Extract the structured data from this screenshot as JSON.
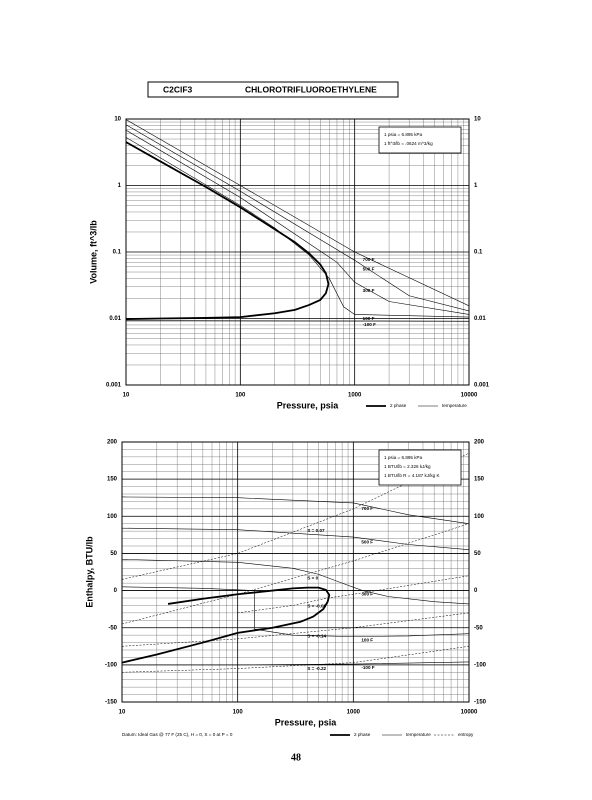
{
  "header": {
    "formula": "C2ClF3",
    "name": "CHLOROTRIFLUOROETHYLENE"
  },
  "page_number": "48",
  "chart_data": [
    {
      "type": "line",
      "xlabel": "Pressure,  psia",
      "ylabel": "Volume, ft^3/lb",
      "xlog": true,
      "ylog": true,
      "grid": true,
      "minor_grid": true,
      "xlim": [
        10,
        10000
      ],
      "xticks": [
        10,
        100,
        1000,
        10000
      ],
      "ylim": [
        0.001,
        10
      ],
      "yticks": [
        0.001,
        0.01,
        0.1,
        1,
        10
      ],
      "notes": [
        "1 psia = 6.895 kPa",
        "1 ft^3/lb = .0624 m^3/kg"
      ],
      "legend": [
        {
          "name": "2 phase",
          "style": "two-phase"
        },
        {
          "name": "temperature",
          "style": "temperature"
        }
      ],
      "series": [
        {
          "style": "two-phase",
          "color": "#000",
          "x": [
            10,
            20,
            50,
            100,
            200,
            300,
            400,
            500,
            560,
            590,
            560,
            500,
            400,
            300,
            200,
            100,
            50,
            20,
            10
          ],
          "values": [
            4.5,
            2.3,
            0.95,
            0.47,
            0.22,
            0.14,
            0.095,
            0.065,
            0.048,
            0.033,
            0.024,
            0.019,
            0.016,
            0.0135,
            0.012,
            0.0105,
            0.0102,
            0.01,
            0.0098
          ]
        },
        {
          "name": "700 F",
          "style": "temperature",
          "color": "#000",
          "x": [
            10,
            100,
            1000,
            10000
          ],
          "values": [
            9.8,
            1.0,
            0.1,
            0.0155
          ]
        },
        {
          "name": "500 F",
          "style": "temperature",
          "color": "#000",
          "x": [
            10,
            100,
            1000,
            3000,
            10000
          ],
          "values": [
            8.2,
            0.82,
            0.075,
            0.022,
            0.013
          ]
        },
        {
          "name": "300 F",
          "style": "temperature",
          "color": "#000",
          "x": [
            10,
            100,
            700,
            1000,
            2000,
            10000
          ],
          "values": [
            6.8,
            0.66,
            0.07,
            0.035,
            0.018,
            0.0115
          ]
        },
        {
          "name": "100 F",
          "style": "temperature",
          "color": "#000",
          "x": [
            10,
            100,
            200,
            400,
            600,
            800,
            1000,
            10000
          ],
          "values": [
            5.3,
            0.5,
            0.23,
            0.09,
            0.04,
            0.015,
            0.0115,
            0.0105
          ]
        },
        {
          "name": "-100 F",
          "style": "temperature",
          "color": "#000",
          "x": [
            10,
            1000,
            10000
          ],
          "values": [
            0.0093,
            0.0092,
            0.0091
          ]
        }
      ]
    },
    {
      "type": "line",
      "xlabel": "Pressure,  psia",
      "ylabel": "Enthalpy, BTU/lb",
      "xlog": true,
      "ylog": false,
      "grid": true,
      "minor_grid": true,
      "xlim": [
        10,
        10000
      ],
      "xticks": [
        10,
        100,
        1000,
        10000
      ],
      "ylim": [
        -150,
        200
      ],
      "yticks": [
        -150,
        -100,
        -50,
        0,
        50,
        100,
        150,
        200
      ],
      "notes": [
        "1 psia = 6.895 kPa",
        "1 BTU/lb = 2.326 kJ/kg",
        "1 BTU/lb R = 4.187 kJ/kg K"
      ],
      "footnote": "Datum: Ideal Gas @ 77 F (25 C), H = 0, S = 0 at P = 0",
      "legend": [
        {
          "name": "2 phase",
          "style": "two-phase"
        },
        {
          "name": "temperature",
          "style": "temperature"
        },
        {
          "name": "entropy",
          "style": "entropy"
        }
      ],
      "series": [
        {
          "style": "two-phase",
          "color": "#000",
          "x": [
            25,
            50,
            100,
            200,
            300,
            400,
            500,
            580,
            620,
            600,
            550,
            450,
            350,
            200,
            100,
            50,
            20,
            10
          ],
          "values": [
            -18,
            -11,
            -5,
            0,
            3,
            4,
            4,
            1,
            -6,
            -15,
            -25,
            -35,
            -42,
            -50,
            -57,
            -70,
            -86,
            -97
          ]
        },
        {
          "name": "700 F",
          "style": "temperature",
          "color": "#000",
          "x": [
            10,
            100,
            1000,
            3000,
            10000
          ],
          "values": [
            126,
            125,
            118,
            102,
            90
          ]
        },
        {
          "name": "500 F",
          "style": "temperature",
          "color": "#000",
          "x": [
            10,
            100,
            1000,
            3000,
            10000
          ],
          "values": [
            84,
            82,
            72,
            62,
            55
          ]
        },
        {
          "name": "300 F",
          "style": "temperature",
          "color": "#000",
          "x": [
            10,
            100,
            300,
            500,
            800,
            1200,
            2000,
            5000,
            10000
          ],
          "values": [
            42,
            38,
            30,
            22,
            10,
            0,
            -8,
            -15,
            -18
          ]
        },
        {
          "name": "100 F",
          "style": "temperature",
          "color": "#000",
          "x": [
            10,
            50,
            140,
            140,
            300,
            1000,
            3000,
            10000
          ],
          "values": [
            5,
            3,
            0,
            -52,
            -60,
            -62,
            -61,
            -58
          ]
        },
        {
          "name": "-100 F",
          "style": "temperature",
          "color": "#000",
          "x": [
            10,
            100,
            1000,
            10000
          ],
          "values": [
            -100,
            -100,
            -99,
            -96
          ]
        },
        {
          "name": "S = 0.07",
          "style": "entropy",
          "color": "#000",
          "x": [
            10,
            100,
            1000,
            10000
          ],
          "values": [
            15,
            50,
            110,
            185
          ]
        },
        {
          "name": "S = 0",
          "style": "entropy",
          "color": "#000",
          "x": [
            10,
            100,
            1000,
            10000
          ],
          "values": [
            -45,
            -5,
            40,
            90
          ]
        },
        {
          "name": "S = -0.08",
          "style": "entropy",
          "color": "#000",
          "x": [
            100,
            300,
            600,
            1000,
            10000
          ],
          "values": [
            -30,
            -20,
            -10,
            -5,
            20
          ]
        },
        {
          "name": "S = -0.14",
          "style": "entropy",
          "color": "#000",
          "x": [
            10,
            100,
            1000,
            10000
          ],
          "values": [
            -75,
            -65,
            -50,
            -30
          ]
        },
        {
          "name": "S = -0.22",
          "style": "entropy",
          "color": "#000",
          "x": [
            10,
            100,
            1000,
            10000
          ],
          "values": [
            -110,
            -105,
            -97,
            -75
          ]
        }
      ]
    }
  ]
}
